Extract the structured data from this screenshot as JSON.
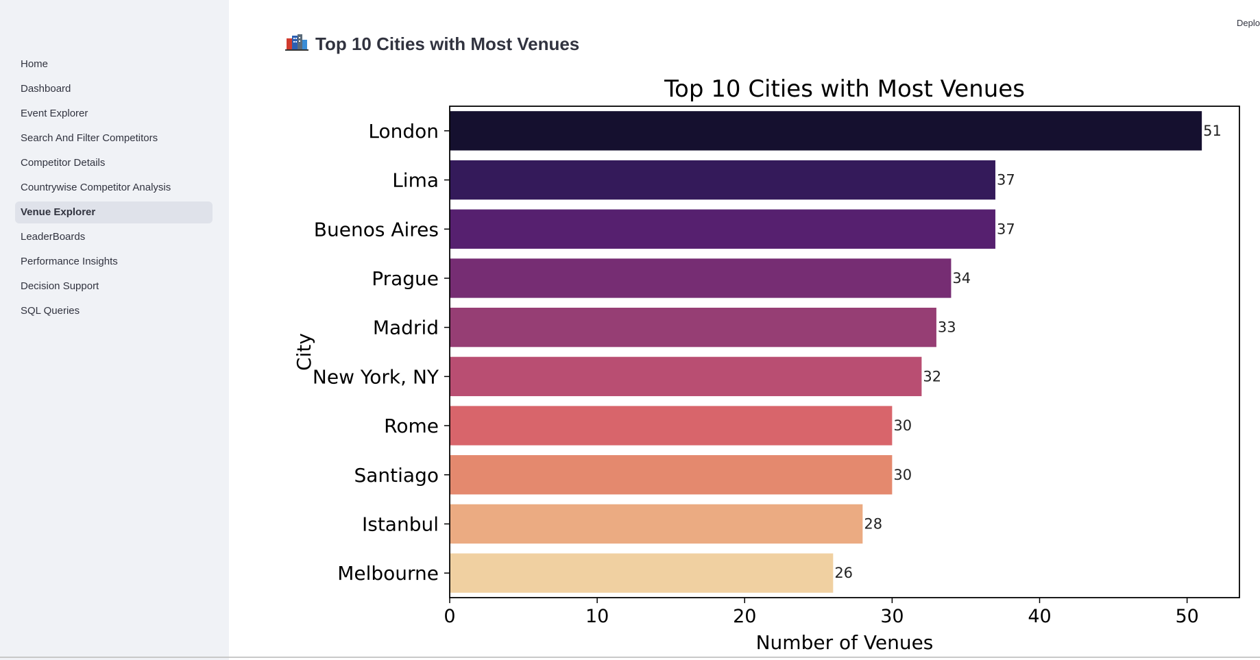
{
  "sidebar": {
    "items": [
      {
        "label": "Home",
        "active": false
      },
      {
        "label": "Dashboard",
        "active": false
      },
      {
        "label": "Event Explorer",
        "active": false
      },
      {
        "label": "Search And Filter Competitors",
        "active": false
      },
      {
        "label": "Competitor Details",
        "active": false
      },
      {
        "label": "Countrywise Competitor Analysis",
        "active": false
      },
      {
        "label": "Venue Explorer",
        "active": true
      },
      {
        "label": "LeaderBoards",
        "active": false
      },
      {
        "label": "Performance Insights",
        "active": false
      },
      {
        "label": "Decision Support",
        "active": false
      },
      {
        "label": "SQL Queries",
        "active": false
      }
    ]
  },
  "header": {
    "deploy_label": "Deplo",
    "page_title": "Top 10 Cities with Most Venues",
    "title_icon": "cityscape-icon"
  },
  "chart_data": {
    "type": "bar",
    "orientation": "horizontal",
    "title": "Top 10 Cities with Most Venues",
    "xlabel": "Number of Venues",
    "ylabel": "City",
    "categories": [
      "London",
      "Lima",
      "Buenos Aires",
      "Prague",
      "Madrid",
      "New York, NY",
      "Rome",
      "Santiago",
      "Istanbul",
      "Melbourne"
    ],
    "values": [
      51,
      37,
      37,
      34,
      33,
      32,
      30,
      30,
      28,
      26
    ],
    "xticks": [
      0,
      10,
      20,
      30,
      40,
      50
    ],
    "xlim": [
      0,
      53.55
    ],
    "colors": [
      "#15102f",
      "#341a5a",
      "#56206f",
      "#762d73",
      "#963e74",
      "#b94e72",
      "#d8656b",
      "#e4896e",
      "#ebab82",
      "#f0d0a1"
    ],
    "grid": false,
    "data_labels": true
  }
}
